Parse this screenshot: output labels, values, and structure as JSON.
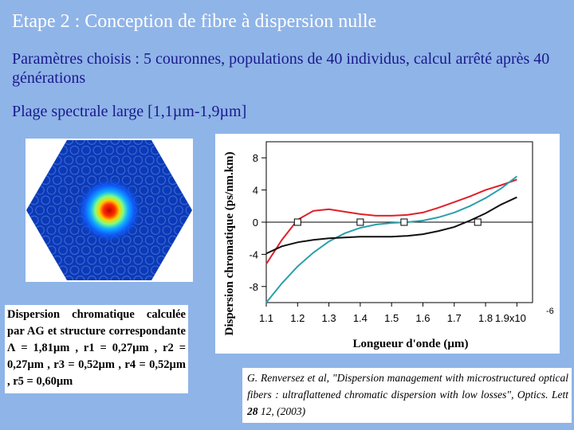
{
  "slide": {
    "title": "Etape 2 : Conception de fibre à dispersion nulle",
    "params": "Paramètres choisis : 5 couronnes, populations de 40 individus, calcul arrêté après 40 générations",
    "range": "Plage spectrale large [1,1µm-1,9µm]"
  },
  "fiber_image": {
    "description_icon": "hexagonal-photonic-crystal-fiber-mode-image"
  },
  "caption": "Dispersion chromatique calculée par AG et structure correspondante Λ = 1,81µm , r1 = 0,27µm , r2 = 0,27µm , r3 = 0,52µm , r4 = 0,52µm , r5 = 0,60µm",
  "reference": {
    "text": "G. Renversez et al, \"Dispersion management with microstructured optical fibers : ultraflattened chromatic dispersion with low losses\", ",
    "journal": "Optics. Lett",
    "volume": "28",
    "rest": " 12, (2003)"
  },
  "chart_data": {
    "type": "line",
    "xlabel": "Longueur d'onde (µm)",
    "ylabel": "Dispersion chromatique (ps/nm.km)",
    "x_ticks": [
      "1.1",
      "1.2",
      "1.3",
      "1.4",
      "1.5",
      "1.6",
      "1.7",
      "1.8",
      "1.9x10"
    ],
    "x_exponent": "-6",
    "y_ticks": [
      "8",
      "4",
      "0",
      "-4",
      "-8"
    ],
    "xlim": [
      1.1,
      1.95
    ],
    "ylim": [
      -10,
      10
    ],
    "series": [
      {
        "color": "#e0202a",
        "points": [
          [
            1.1,
            -5.2
          ],
          [
            1.15,
            -2.2
          ],
          [
            1.2,
            0.3
          ],
          [
            1.25,
            1.4
          ],
          [
            1.3,
            1.6
          ],
          [
            1.35,
            1.3
          ],
          [
            1.4,
            1.0
          ],
          [
            1.45,
            0.8
          ],
          [
            1.5,
            0.8
          ],
          [
            1.55,
            0.9
          ],
          [
            1.6,
            1.2
          ],
          [
            1.65,
            1.8
          ],
          [
            1.7,
            2.5
          ],
          [
            1.75,
            3.2
          ],
          [
            1.8,
            4.0
          ],
          [
            1.85,
            4.6
          ],
          [
            1.9,
            5.3
          ]
        ]
      },
      {
        "color": "#2aa0ac",
        "points": [
          [
            1.1,
            -10.0
          ],
          [
            1.15,
            -7.6
          ],
          [
            1.2,
            -5.5
          ],
          [
            1.25,
            -3.8
          ],
          [
            1.3,
            -2.4
          ],
          [
            1.35,
            -1.4
          ],
          [
            1.4,
            -0.7
          ],
          [
            1.45,
            -0.3
          ],
          [
            1.5,
            -0.1
          ],
          [
            1.55,
            0.0
          ],
          [
            1.6,
            0.2
          ],
          [
            1.65,
            0.6
          ],
          [
            1.7,
            1.2
          ],
          [
            1.75,
            2.0
          ],
          [
            1.8,
            3.0
          ],
          [
            1.85,
            4.2
          ],
          [
            1.9,
            5.7
          ]
        ]
      },
      {
        "color": "#101010",
        "points": [
          [
            1.1,
            -3.9
          ],
          [
            1.15,
            -3.0
          ],
          [
            1.2,
            -2.5
          ],
          [
            1.25,
            -2.2
          ],
          [
            1.3,
            -2.0
          ],
          [
            1.35,
            -1.9
          ],
          [
            1.4,
            -1.8
          ],
          [
            1.45,
            -1.8
          ],
          [
            1.5,
            -1.8
          ],
          [
            1.55,
            -1.7
          ],
          [
            1.6,
            -1.5
          ],
          [
            1.65,
            -1.1
          ],
          [
            1.7,
            -0.6
          ],
          [
            1.75,
            0.2
          ],
          [
            1.8,
            1.1
          ],
          [
            1.85,
            2.2
          ],
          [
            1.9,
            3.1
          ]
        ]
      }
    ],
    "markers": [
      [
        1.2,
        0
      ],
      [
        1.4,
        0
      ],
      [
        1.54,
        0
      ],
      [
        1.775,
        0
      ]
    ]
  }
}
